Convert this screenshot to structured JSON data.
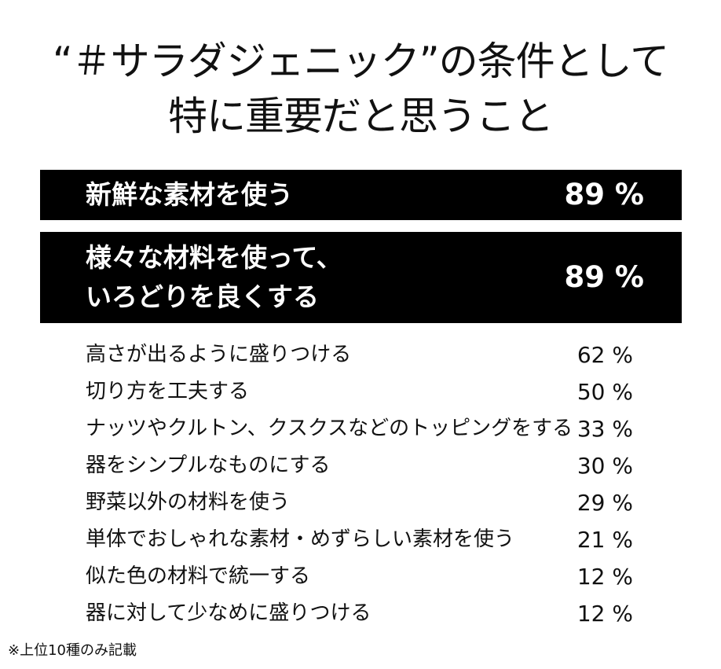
{
  "chart_data": {
    "type": "table",
    "title": [
      "“＃サラダジェニック”の条件として",
      "特に重要だと思うこと"
    ],
    "unit": "%",
    "rows": [
      {
        "label": [
          "新鮮な素材を使う"
        ],
        "value": 89
      },
      {
        "label": [
          "様々な材料を使って、",
          "いろどりを良くする"
        ],
        "value": 89
      },
      {
        "label": [
          "高さが出るように盛りつける"
        ],
        "value": 62
      },
      {
        "label": [
          "切り方を工夫する"
        ],
        "value": 50
      },
      {
        "label": [
          "ナッツやクルトン、クスクスなどのトッピングをする"
        ],
        "value": 33
      },
      {
        "label": [
          "器をシンプルなものにする"
        ],
        "value": 30
      },
      {
        "label": [
          "野菜以外の材料を使う"
        ],
        "value": 29
      },
      {
        "label": [
          "単体でおしゃれな素材・めずらしい素材を使う"
        ],
        "value": 21
      },
      {
        "label": [
          "似た色の材料で統一する"
        ],
        "value": 12
      },
      {
        "label": [
          "器に対して少なめに盛りつける"
        ],
        "value": 12
      }
    ],
    "highlight_color": "#000000",
    "highlight_text_color": "#ffffff",
    "footnote": "※上位10種のみ記載"
  }
}
